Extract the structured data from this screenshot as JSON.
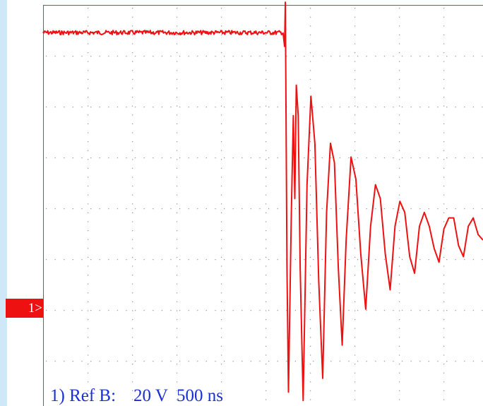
{
  "colors": {
    "trace": "#ee1111",
    "grid_border": "#2e8b2e",
    "grid_dots": "#909090",
    "readout_text": "#1a2fd6",
    "marker_bg": "#ee1111",
    "left_strip": "#cfe8f8"
  },
  "channel_marker": {
    "label": "1>"
  },
  "readout": {
    "channel": "1)",
    "source": "Ref B:",
    "volts_per_div": "20 V",
    "time_per_div": "500 ns"
  },
  "chart_data": {
    "type": "line",
    "title": "",
    "xlabel": "",
    "ylabel": "",
    "grid": true,
    "x_unit": "ns",
    "y_unit": "V",
    "xlim": [
      0,
      4500
    ],
    "ylim": [
      -60,
      85
    ],
    "series": [
      {
        "points": [
          [
            0,
            75
          ],
          [
            2460,
            75
          ],
          [
            2470,
            70
          ],
          [
            2478,
            86
          ],
          [
            2486,
            40
          ],
          [
            2495,
            -10
          ],
          [
            2510,
            -55
          ],
          [
            2540,
            10
          ],
          [
            2560,
            45
          ],
          [
            2575,
            15
          ],
          [
            2590,
            56
          ],
          [
            2610,
            45
          ],
          [
            2630,
            -10
          ],
          [
            2660,
            -58
          ],
          [
            2700,
            20
          ],
          [
            2740,
            52
          ],
          [
            2780,
            35
          ],
          [
            2820,
            -15
          ],
          [
            2860,
            -50
          ],
          [
            2900,
            10
          ],
          [
            2940,
            35
          ],
          [
            2980,
            28
          ],
          [
            3020,
            -10
          ],
          [
            3060,
            -38
          ],
          [
            3100,
            0
          ],
          [
            3150,
            30
          ],
          [
            3200,
            22
          ],
          [
            3250,
            -5
          ],
          [
            3300,
            -25
          ],
          [
            3350,
            5
          ],
          [
            3400,
            20
          ],
          [
            3450,
            15
          ],
          [
            3500,
            -5
          ],
          [
            3550,
            -18
          ],
          [
            3600,
            5
          ],
          [
            3650,
            14
          ],
          [
            3700,
            10
          ],
          [
            3750,
            -6
          ],
          [
            3800,
            -12
          ],
          [
            3850,
            5
          ],
          [
            3900,
            10
          ],
          [
            3950,
            5
          ],
          [
            4000,
            -3
          ],
          [
            4050,
            -8
          ],
          [
            4100,
            4
          ],
          [
            4150,
            8
          ],
          [
            4200,
            8
          ],
          [
            4250,
            -2
          ],
          [
            4300,
            -6
          ],
          [
            4350,
            5
          ],
          [
            4400,
            8
          ],
          [
            4450,
            2
          ],
          [
            4500,
            0
          ]
        ]
      }
    ]
  }
}
